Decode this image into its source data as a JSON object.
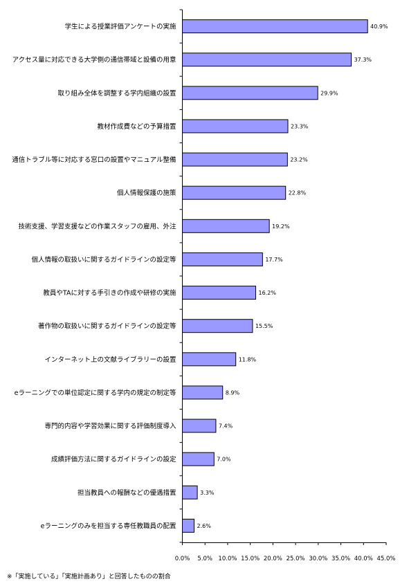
{
  "chart_data": {
    "type": "bar",
    "orientation": "horizontal",
    "categories": [
      "学生による授業評価アンケートの実施",
      "アクセス量に対応できる大学側の通信帯域と設備の用意",
      "取り組み全体を調整する学内組織の設置",
      "教材作成費などの予算措置",
      "通信トラブル等に対応する窓口の設置やマニュアル整備",
      "個人情報保護の施策",
      "技術支援、学習支援などの作業スタッフの雇用、外注",
      "個人情報の取扱いに関するガイドラインの設定等",
      "教員やTAに対する手引きの作成や研修の実施",
      "著作物の取扱いに関するガイドラインの設定等",
      "インターネット上の文献ライブラリーの設置",
      "eラーニングでの単位認定に関する学内の規定の制定等",
      "専門的内容や学習効果に関する評価制度導入",
      "成績評価方法に関するガイドラインの設定",
      "担当教員への報酬などの優遇措置",
      "eラーニングのみを担当する専任教職員の配置"
    ],
    "values": [
      40.9,
      37.3,
      29.9,
      23.3,
      23.2,
      22.8,
      19.2,
      17.7,
      16.2,
      15.5,
      11.8,
      8.9,
      7.4,
      7.0,
      3.3,
      2.6
    ],
    "value_labels": [
      "40.9%",
      "37.3%",
      "29.9%",
      "23.3%",
      "23.2%",
      "22.8%",
      "19.2%",
      "17.7%",
      "16.2%",
      "15.5%",
      "11.8%",
      "8.9%",
      "7.4%",
      "7.0%",
      "3.3%",
      "2.6%"
    ],
    "x_ticks": [
      0,
      5,
      10,
      15,
      20,
      25,
      30,
      35,
      40,
      45
    ],
    "x_tick_labels": [
      "0.0%",
      "5.0%",
      "10.0%",
      "15.0%",
      "20.0%",
      "25.0%",
      "30.0%",
      "35.0%",
      "40.0%",
      "45.0%"
    ],
    "xlim": [
      0,
      45
    ],
    "grid": false,
    "legend": "none",
    "bar_color": "#9999ff",
    "bar_edge_color": "#000000"
  },
  "footnote": "※「実施している」「実施計画あり」と回答したものの割合"
}
